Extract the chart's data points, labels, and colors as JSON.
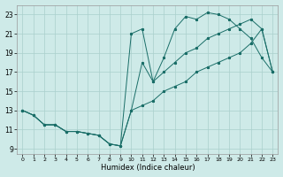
{
  "xlabel": "Humidex (Indice chaleur)",
  "background_color": "#ceeae8",
  "grid_color": "#aacfcc",
  "line_color": "#1a6e68",
  "xlim": [
    -0.5,
    23.5
  ],
  "ylim": [
    8.5,
    24.0
  ],
  "yticks": [
    9,
    11,
    13,
    15,
    17,
    19,
    21,
    23
  ],
  "xticks": [
    0,
    1,
    2,
    3,
    4,
    5,
    6,
    7,
    8,
    9,
    10,
    11,
    12,
    13,
    14,
    15,
    16,
    17,
    18,
    19,
    20,
    21,
    22,
    23
  ],
  "line1_x": [
    0,
    1,
    2,
    3,
    4,
    5,
    6,
    7,
    8,
    9,
    10,
    11,
    12,
    13,
    14,
    15,
    16,
    17,
    18,
    19,
    20,
    21,
    22,
    23
  ],
  "line1_y": [
    13.0,
    12.5,
    11.5,
    11.5,
    10.8,
    10.8,
    10.6,
    10.4,
    9.5,
    9.3,
    21.0,
    21.5,
    16.0,
    18.5,
    21.5,
    22.8,
    22.5,
    23.2,
    23.0,
    22.5,
    21.5,
    20.5,
    18.5,
    17.0
  ],
  "line2_x": [
    0,
    1,
    2,
    3,
    4,
    5,
    6,
    7,
    8,
    9,
    10,
    11,
    12,
    13,
    14,
    15,
    16,
    17,
    18,
    19,
    20,
    21,
    22,
    23
  ],
  "line2_y": [
    13.0,
    12.5,
    11.5,
    11.5,
    10.8,
    10.8,
    10.6,
    10.4,
    9.5,
    9.3,
    13.0,
    18.0,
    16.0,
    17.0,
    18.0,
    19.0,
    19.5,
    20.5,
    21.0,
    21.5,
    22.0,
    22.5,
    21.5,
    17.0
  ],
  "line3_x": [
    0,
    1,
    2,
    3,
    4,
    5,
    6,
    7,
    8,
    9,
    10,
    11,
    12,
    13,
    14,
    15,
    16,
    17,
    18,
    19,
    20,
    21,
    22,
    23
  ],
  "line3_y": [
    13.0,
    12.5,
    11.5,
    11.5,
    10.8,
    10.8,
    10.6,
    10.4,
    9.5,
    9.3,
    13.0,
    13.5,
    14.0,
    15.0,
    15.5,
    16.0,
    17.0,
    17.5,
    18.0,
    18.5,
    19.0,
    20.0,
    21.5,
    17.0
  ]
}
